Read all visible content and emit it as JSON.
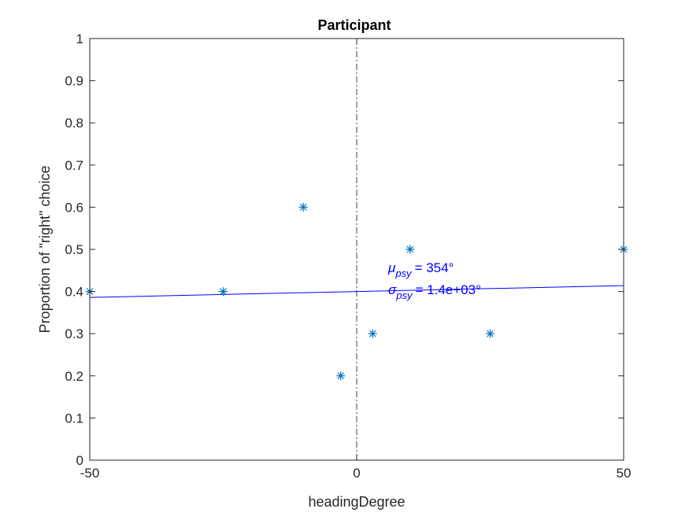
{
  "chart_data": {
    "type": "scatter",
    "title": "Participant",
    "xlabel": "headingDegree",
    "ylabel": "Proportion of \"right\" choice",
    "xlim": [
      -50,
      50
    ],
    "ylim": [
      0,
      1
    ],
    "xticks": [
      -50,
      0,
      50
    ],
    "xtick_labels": [
      "-50",
      "0",
      "50"
    ],
    "yticks": [
      0,
      0.1,
      0.2,
      0.3,
      0.4,
      0.5,
      0.6,
      0.7,
      0.8,
      0.9,
      1
    ],
    "ytick_labels": [
      "0",
      "0.1",
      "0.2",
      "0.3",
      "0.4",
      "0.5",
      "0.6",
      "0.7",
      "0.8",
      "0.9",
      "1"
    ],
    "grid": false,
    "points": {
      "marker": "asterisk",
      "color": "#0072BD",
      "x": [
        -50,
        -25,
        -10,
        -3,
        3,
        10,
        25,
        50
      ],
      "y": [
        0.4,
        0.4,
        0.6,
        0.2,
        0.3,
        0.5,
        0.3,
        0.5
      ]
    },
    "fit_line": {
      "color": "#0000FF",
      "x": [
        -50,
        50
      ],
      "y": [
        0.386,
        0.414
      ]
    },
    "reference_line": {
      "style": "dash-dot",
      "color": "#404040",
      "x": 0
    },
    "annotation": {
      "color": "#0000FF",
      "mu_symbol": "μ",
      "mu_sub": "psy",
      "mu_value": "=    354°",
      "sigma_symbol": "σ",
      "sigma_sub": "psy",
      "sigma_value": "= 1.4e+03°"
    }
  }
}
